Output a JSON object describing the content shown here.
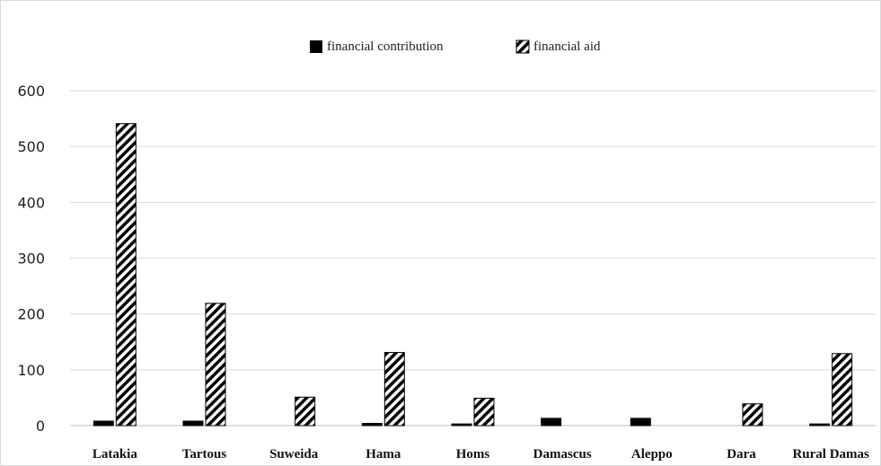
{
  "chart_data": {
    "type": "bar",
    "categories": [
      "Latakia",
      "Tartous",
      "Suweida",
      "Hama",
      "Homs",
      "Damascus",
      "Aleppo",
      "Dara",
      "Rural Damas"
    ],
    "series": [
      {
        "name": "financial contribution",
        "values": [
          8,
          8,
          0,
          4,
          3,
          13,
          13,
          0,
          3
        ],
        "fill": "solid",
        "color": "#000000"
      },
      {
        "name": "financial aid",
        "values": [
          541,
          219,
          51,
          131,
          49,
          0,
          0,
          39,
          129
        ],
        "fill": "diagonal-hatch",
        "color": "#000000"
      }
    ],
    "yticks": [
      0,
      100,
      200,
      300,
      400,
      500,
      600
    ],
    "ylim": [
      0,
      600
    ],
    "grid": true,
    "legend_position": "top-center",
    "title": "",
    "xlabel": "",
    "ylabel": ""
  }
}
